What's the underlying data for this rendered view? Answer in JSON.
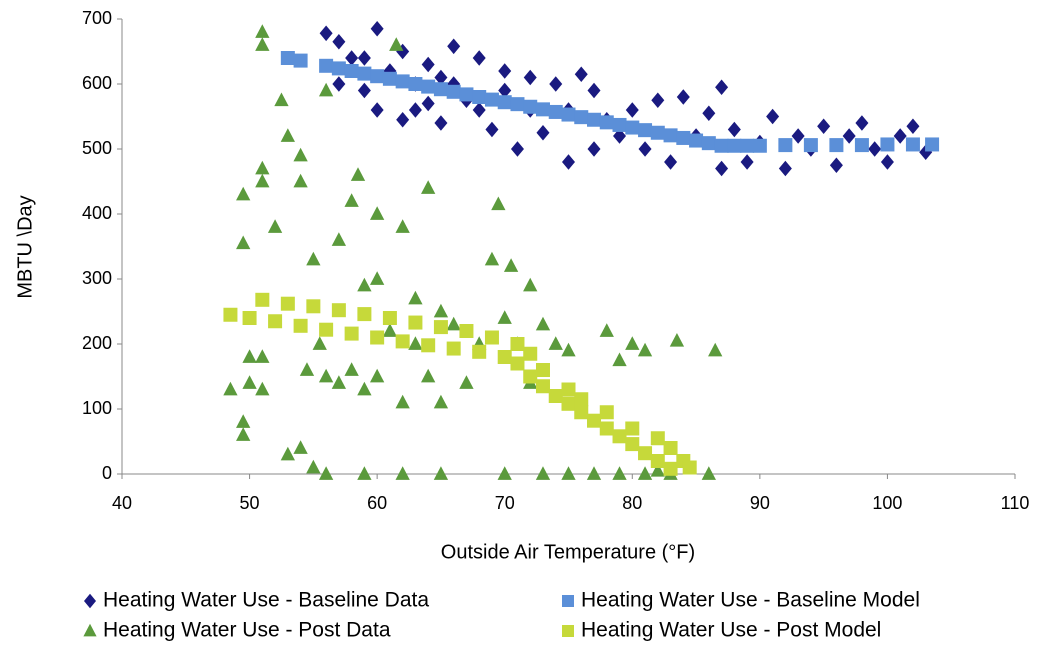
{
  "chart_data": {
    "type": "scatter",
    "x_label": "Outside Air Temperature (°F)",
    "y_label": "MBTU \\Day",
    "xlim": [
      40,
      110
    ],
    "xticks": [
      40,
      50,
      60,
      70,
      80,
      90,
      100,
      110
    ],
    "ylim": [
      0,
      700
    ],
    "yticks": [
      0,
      100,
      200,
      300,
      400,
      500,
      600,
      700
    ],
    "grid": false,
    "legend": "bottom",
    "series": [
      {
        "name": "Heating Water Use - Baseline Data",
        "color": "#1a1a80",
        "marker": "diamond",
        "x": [
          56,
          57,
          58,
          59,
          60,
          60,
          61,
          62,
          62,
          63,
          64,
          64,
          65,
          66,
          66,
          67,
          68,
          68,
          69,
          70,
          70,
          71,
          72,
          72,
          73,
          74,
          75,
          75,
          76,
          77,
          77,
          78,
          79,
          80,
          81,
          82,
          83,
          84,
          85,
          86,
          87,
          87,
          88,
          89,
          90,
          91,
          92,
          93,
          94,
          95,
          96,
          97,
          98,
          99,
          100,
          101,
          102,
          103,
          57,
          59,
          63,
          65
        ],
        "values": [
          678,
          665,
          640,
          590,
          685,
          560,
          620,
          650,
          545,
          600,
          630,
          570,
          540,
          658,
          600,
          575,
          640,
          560,
          530,
          620,
          590,
          500,
          610,
          560,
          525,
          600,
          480,
          560,
          615,
          590,
          500,
          545,
          520,
          560,
          500,
          575,
          480,
          580,
          520,
          555,
          595,
          470,
          530,
          480,
          510,
          550,
          470,
          520,
          500,
          535,
          475,
          520,
          540,
          500,
          480,
          520,
          535,
          495,
          600,
          640,
          560,
          610
        ]
      },
      {
        "name": "Heating Water Use - Baseline Model",
        "color": "#5b8fd8",
        "marker": "square",
        "x": [
          53,
          54,
          56,
          57,
          58,
          59,
          60,
          61,
          62,
          63,
          64,
          65,
          66,
          67,
          68,
          69,
          70,
          71,
          72,
          73,
          74,
          75,
          76,
          77,
          78,
          79,
          80,
          81,
          82,
          83,
          84,
          85,
          86,
          87,
          88,
          89,
          90,
          92,
          94,
          96,
          98,
          100,
          102,
          103.5
        ],
        "values": [
          640,
          636,
          628,
          624,
          620,
          616,
          612,
          608,
          604,
          600,
          596,
          592,
          588,
          584,
          580,
          576,
          572,
          569,
          565,
          561,
          557,
          553,
          549,
          545,
          541,
          537,
          533,
          529,
          525,
          521,
          517,
          513,
          509,
          505,
          505,
          505,
          505,
          506,
          506,
          506,
          506,
          507,
          507,
          507
        ]
      },
      {
        "name": "Heating Water Use - Post Data",
        "color": "#5b9a3c",
        "marker": "triangle",
        "x": [
          48.5,
          49.5,
          49.5,
          49.5,
          49.5,
          50,
          50,
          51,
          51,
          51,
          51,
          51,
          51,
          52,
          52.5,
          53,
          53,
          54,
          54,
          54.5,
          54,
          55,
          55,
          55.5,
          56,
          56,
          57,
          57,
          58,
          58,
          58.5,
          59,
          59,
          60,
          60,
          60,
          61,
          61.5,
          62,
          62,
          63,
          63,
          64,
          64,
          65,
          65,
          66,
          67,
          68,
          69,
          69.5,
          70,
          70.5,
          71,
          72,
          72,
          73,
          74,
          75,
          78,
          79,
          80,
          81,
          83.5,
          86.5,
          56,
          59,
          62,
          65,
          70,
          73,
          75,
          77,
          79,
          81,
          83,
          86,
          82
        ],
        "values": [
          130,
          430,
          355,
          60,
          80,
          180,
          140,
          680,
          660,
          470,
          450,
          180,
          130,
          380,
          575,
          520,
          30,
          450,
          490,
          160,
          40,
          330,
          10,
          200,
          150,
          590,
          360,
          140,
          420,
          160,
          460,
          290,
          130,
          400,
          300,
          150,
          220,
          660,
          380,
          110,
          270,
          200,
          440,
          150,
          250,
          110,
          230,
          140,
          200,
          330,
          415,
          240,
          320,
          200,
          290,
          140,
          230,
          200,
          190,
          220,
          175,
          200,
          190,
          205,
          190,
          0,
          0,
          0,
          0,
          0,
          0,
          0,
          0,
          0,
          0,
          0,
          0,
          5
        ]
      },
      {
        "name": "Heating Water Use - Post Model",
        "color": "#c6d93a",
        "marker": "square",
        "x": [
          48.5,
          50,
          52,
          54,
          56,
          58,
          60,
          62,
          64,
          66,
          68,
          70,
          71,
          72,
          73,
          74,
          75,
          76,
          77,
          78,
          79,
          80,
          81,
          82,
          83,
          51,
          53,
          55,
          57,
          59,
          61,
          63,
          65,
          67,
          69,
          71,
          72,
          73,
          75,
          76,
          78,
          80,
          82,
          83,
          84,
          84.5
        ],
        "values": [
          245,
          240,
          235,
          228,
          222,
          216,
          210,
          204,
          198,
          193,
          188,
          180,
          170,
          150,
          135,
          120,
          108,
          95,
          82,
          70,
          58,
          46,
          32,
          20,
          8,
          268,
          262,
          258,
          252,
          246,
          240,
          233,
          226,
          220,
          210,
          200,
          185,
          160,
          130,
          115,
          95,
          70,
          55,
          40,
          20,
          10
        ]
      }
    ]
  }
}
